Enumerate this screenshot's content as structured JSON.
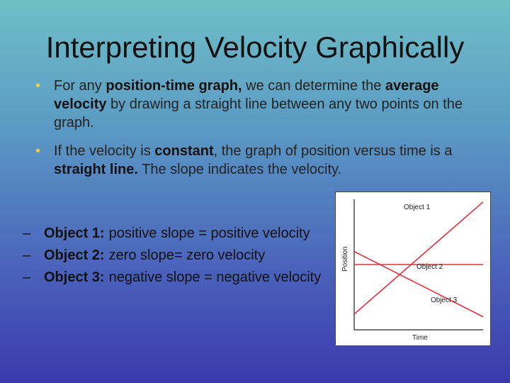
{
  "slide": {
    "title": "Interpreting Velocity Graphically",
    "bullets": [
      {
        "parts": [
          {
            "text": "For any ",
            "bold": false
          },
          {
            "text": "position-time graph,",
            "bold": true
          },
          {
            "text": " we can determine the ",
            "bold": false
          },
          {
            "text": "average velocity",
            "bold": true
          },
          {
            "text": " by drawing a straight line between any two points on the graph.",
            "bold": false
          }
        ]
      },
      {
        "parts": [
          {
            "text": "If the velocity is ",
            "bold": false
          },
          {
            "text": "constant",
            "bold": true
          },
          {
            "text": ", the graph  of position versus time is a ",
            "bold": false
          },
          {
            "text": "straight  line.",
            "bold": true
          },
          {
            "text": " The slope indicates the velocity.",
            "bold": false
          }
        ]
      }
    ],
    "subitems": [
      {
        "dash": "–",
        "label": "Object 1:",
        "text": "positive slope = positive velocity"
      },
      {
        "dash": "–",
        "label": "Object 2:",
        "text": "zero slope= zero velocity"
      },
      {
        "dash": "–",
        "label": "Object 3:",
        "text": "negative slope = negative velocity"
      }
    ]
  },
  "graph": {
    "ylabel": "Position",
    "xlabel": "Time",
    "line_color": "#e0303a",
    "objects": [
      {
        "label": "Object 1",
        "x0": 0,
        "y0": 0.12,
        "x1": 1,
        "y1": 0.98
      },
      {
        "label": "Object 2",
        "x0": 0,
        "y0": 0.5,
        "x1": 1,
        "y1": 0.5
      },
      {
        "label": "Object 3",
        "x0": 0,
        "y0": 0.6,
        "x1": 1,
        "y1": 0.1
      }
    ]
  }
}
